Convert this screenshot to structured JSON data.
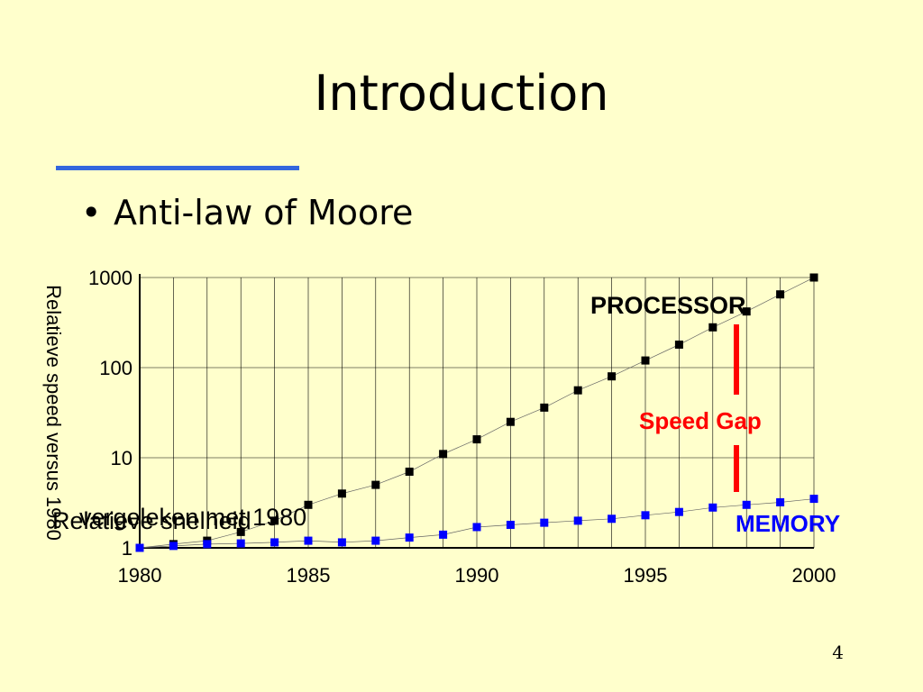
{
  "slide": {
    "title": "Introduction",
    "bullet": "Anti-law of Moore",
    "page_number": "4"
  },
  "chart_data": {
    "type": "scatter",
    "ylabel": "Relatieve speed versus 1980",
    "xlabel": "",
    "y_scale": "log",
    "xlim": [
      1980,
      2000
    ],
    "ylim": [
      1,
      1000
    ],
    "x_ticks": [
      1980,
      1985,
      1990,
      1995,
      2000
    ],
    "y_ticks": [
      1,
      10,
      100,
      1000
    ],
    "grid": true,
    "annotations": {
      "processor_label": "PROCESSOR",
      "memory_label": "MEMORY",
      "speed_gap_label": "Speed Gap",
      "overlay_text_1": "vergeleken met 1980",
      "overlay_text_2": "Relatieve snelheid"
    },
    "colors": {
      "processor": "#000000",
      "memory": "#0000ff",
      "speed_gap": "#ff0000",
      "background": "#ffffcc"
    },
    "series": [
      {
        "name": "PROCESSOR",
        "x": [
          1980,
          1981,
          1982,
          1983,
          1984,
          1985,
          1986,
          1987,
          1988,
          1989,
          1990,
          1991,
          1992,
          1993,
          1994,
          1995,
          1996,
          1997,
          1998,
          1999,
          2000
        ],
        "y": [
          1,
          1.1,
          1.2,
          1.5,
          2,
          3,
          4,
          5,
          7,
          11,
          16,
          25,
          36,
          56,
          80,
          120,
          180,
          280,
          420,
          650,
          1000
        ]
      },
      {
        "name": "MEMORY",
        "x": [
          1980,
          1981,
          1982,
          1983,
          1984,
          1985,
          1986,
          1987,
          1988,
          1989,
          1990,
          1991,
          1992,
          1993,
          1994,
          1995,
          1996,
          1997,
          1998,
          1999,
          2000
        ],
        "y": [
          1,
          1.05,
          1.1,
          1.12,
          1.15,
          1.2,
          1.15,
          1.2,
          1.3,
          1.4,
          1.7,
          1.8,
          1.9,
          2.0,
          2.1,
          2.3,
          2.5,
          2.8,
          3.0,
          3.2,
          3.5
        ]
      }
    ]
  }
}
